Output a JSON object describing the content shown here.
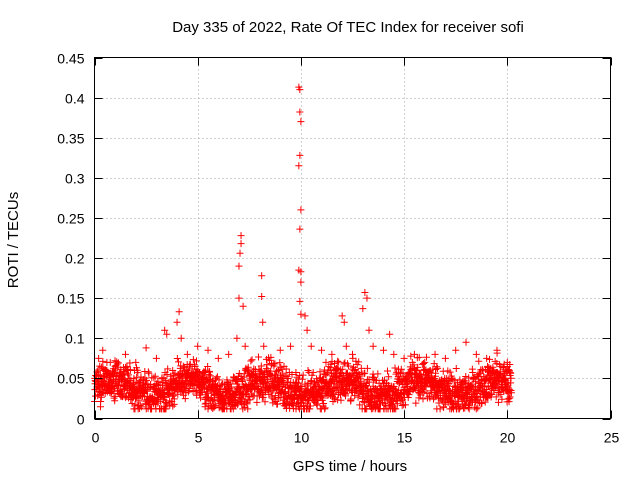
{
  "chart_data": {
    "type": "scatter",
    "title": "Day 335 of 2022, Rate Of TEC Index for receiver sofi",
    "xlabel": "GPS time / hours",
    "ylabel": "ROTI / TECUs",
    "xlim": [
      0,
      25
    ],
    "ylim": [
      0,
      0.45
    ],
    "xticks": [
      0,
      5,
      10,
      15,
      20,
      25
    ],
    "xtick_labels": [
      "0",
      "5",
      "10",
      "15",
      "20",
      "25"
    ],
    "yticks": [
      0,
      0.05,
      0.1,
      0.15,
      0.2,
      0.25,
      0.3,
      0.35,
      0.4,
      0.45
    ],
    "ytick_labels": [
      "0",
      "0.05",
      "0.1",
      "0.15",
      "0.2",
      "0.25",
      "0.3",
      "0.35",
      "0.4",
      "0.45"
    ],
    "grid": true,
    "marker": "+",
    "color": "#ff0000",
    "series": [
      {
        "name": "ROTI",
        "dense_band": {
          "x_range": [
            0,
            20.2
          ],
          "typical_min": 0.015,
          "typical_max": 0.07
        },
        "points": [
          [
            0.2,
            0.075
          ],
          [
            0.4,
            0.085
          ],
          [
            0.6,
            0.07
          ],
          [
            1.0,
            0.065
          ],
          [
            1.5,
            0.08
          ],
          [
            2.0,
            0.07
          ],
          [
            2.5,
            0.088
          ],
          [
            3.0,
            0.075
          ],
          [
            3.4,
            0.11
          ],
          [
            3.5,
            0.105
          ],
          [
            4.0,
            0.12
          ],
          [
            4.1,
            0.133
          ],
          [
            4.2,
            0.1
          ],
          [
            4.5,
            0.08
          ],
          [
            5.0,
            0.09
          ],
          [
            5.5,
            0.085
          ],
          [
            6.0,
            0.075
          ],
          [
            6.5,
            0.08
          ],
          [
            6.9,
            0.1
          ],
          [
            7.0,
            0.19
          ],
          [
            7.0,
            0.15
          ],
          [
            7.05,
            0.206
          ],
          [
            7.1,
            0.218
          ],
          [
            7.1,
            0.228
          ],
          [
            7.2,
            0.14
          ],
          [
            7.3,
            0.09
          ],
          [
            8.1,
            0.178
          ],
          [
            8.1,
            0.152
          ],
          [
            8.15,
            0.12
          ],
          [
            8.2,
            0.09
          ],
          [
            9.0,
            0.085
          ],
          [
            9.5,
            0.09
          ],
          [
            9.9,
            0.413
          ],
          [
            9.95,
            0.41
          ],
          [
            9.95,
            0.382
          ],
          [
            10.0,
            0.37
          ],
          [
            9.95,
            0.328
          ],
          [
            9.9,
            0.315
          ],
          [
            10.0,
            0.26
          ],
          [
            9.95,
            0.236
          ],
          [
            9.9,
            0.185
          ],
          [
            10.0,
            0.183
          ],
          [
            10.0,
            0.17
          ],
          [
            9.95,
            0.146
          ],
          [
            10.0,
            0.13
          ],
          [
            10.2,
            0.128
          ],
          [
            10.3,
            0.11
          ],
          [
            10.5,
            0.09
          ],
          [
            11.0,
            0.085
          ],
          [
            11.5,
            0.08
          ],
          [
            12.0,
            0.128
          ],
          [
            12.1,
            0.12
          ],
          [
            12.2,
            0.09
          ],
          [
            12.5,
            0.08
          ],
          [
            13.0,
            0.137
          ],
          [
            13.1,
            0.157
          ],
          [
            13.2,
            0.15
          ],
          [
            13.3,
            0.11
          ],
          [
            13.5,
            0.09
          ],
          [
            14.0,
            0.085
          ],
          [
            14.3,
            0.105
          ],
          [
            14.5,
            0.08
          ],
          [
            15.0,
            0.075
          ],
          [
            15.5,
            0.08
          ],
          [
            16.0,
            0.07
          ],
          [
            16.5,
            0.08
          ],
          [
            17.0,
            0.075
          ],
          [
            17.5,
            0.085
          ],
          [
            18.0,
            0.095
          ],
          [
            18.5,
            0.08
          ],
          [
            19.0,
            0.075
          ],
          [
            19.5,
            0.085
          ],
          [
            20.0,
            0.07
          ],
          [
            20.1,
            0.06
          ]
        ]
      }
    ]
  }
}
